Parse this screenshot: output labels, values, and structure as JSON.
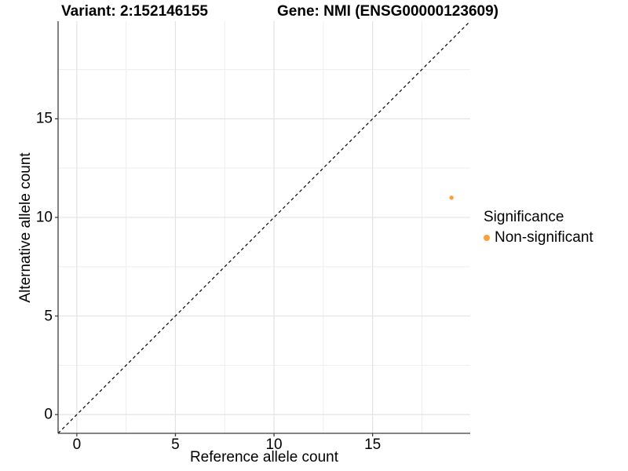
{
  "chart_data": {
    "type": "scatter",
    "title_left": "Variant: 2:152146155",
    "title_right": "Gene: NMI (ENSG00000123609)",
    "xlabel": "Reference allele count",
    "ylabel": "Alternative allele count",
    "xlim": [
      -0.95,
      19.95
    ],
    "ylim": [
      -0.95,
      19.95
    ],
    "x_ticks": [
      0,
      5,
      10,
      15
    ],
    "y_ticks": [
      0,
      5,
      10,
      15
    ],
    "x_minor_ticks": [
      2.5,
      7.5,
      12.5,
      17.5
    ],
    "y_minor_ticks": [
      2.5,
      7.5,
      12.5,
      17.5
    ],
    "grid": true,
    "legend_position": "right",
    "series": [
      {
        "name": "Non-significant",
        "color": "#F9A03C",
        "points": [
          {
            "x": 19,
            "y": 11
          }
        ]
      }
    ],
    "reference_line": {
      "type": "identity",
      "style": "dashed",
      "color": "#000000",
      "from": -0.95,
      "to": 19.95
    },
    "legend": {
      "title": "Significance",
      "entries": [
        {
          "label": "Non-significant",
          "color": "#F9A03C"
        }
      ]
    }
  },
  "colors": {
    "background": "#ffffff",
    "axis_line": "#3c3c3c",
    "major_grid": "#e3e3e3",
    "minor_grid": "#eeeeee",
    "text": "#000000"
  }
}
